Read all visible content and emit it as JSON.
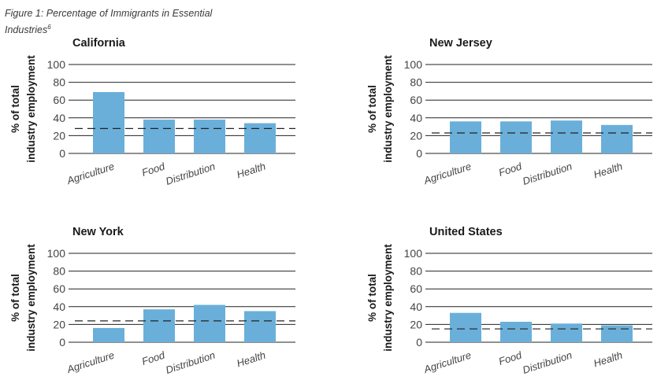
{
  "figure": {
    "caption": "Figure 1: Percentage of Immigrants in Essential Industries",
    "footnote": "6"
  },
  "colors": {
    "bar": "#6aafd9",
    "axis": "#333333",
    "grid": "#222222",
    "text": "#444444"
  },
  "chart_data": [
    {
      "type": "bar",
      "title": "California",
      "ylabel_line1": "% of total",
      "ylabel_line2": "industry employment",
      "categories": [
        "Agriculture",
        "Food",
        "Distribution",
        "Health"
      ],
      "values": [
        69,
        38,
        38,
        34
      ],
      "reference_line": 28,
      "ylim": [
        0,
        100
      ],
      "yticks": [
        0,
        20,
        40,
        60,
        80,
        100
      ],
      "grid": true
    },
    {
      "type": "bar",
      "title": "New Jersey",
      "ylabel_line1": "% of total",
      "ylabel_line2": "industry employment",
      "categories": [
        "Agriculture",
        "Food",
        "Distribution",
        "Health"
      ],
      "values": [
        36,
        36,
        37,
        32
      ],
      "reference_line": 23,
      "ylim": [
        0,
        100
      ],
      "yticks": [
        0,
        20,
        40,
        60,
        80,
        100
      ],
      "grid": true
    },
    {
      "type": "bar",
      "title": "New York",
      "ylabel_line1": "% of total",
      "ylabel_line2": "industry employment",
      "categories": [
        "Agriculture",
        "Food",
        "Distribution",
        "Health"
      ],
      "values": [
        16,
        37,
        42,
        35
      ],
      "reference_line": 24,
      "ylim": [
        0,
        100
      ],
      "yticks": [
        0,
        20,
        40,
        60,
        80,
        100
      ],
      "grid": true
    },
    {
      "type": "bar",
      "title": "United States",
      "ylabel_line1": "% of total",
      "ylabel_line2": "industry employment",
      "categories": [
        "Agriculture",
        "Food",
        "Distribution",
        "Health"
      ],
      "values": [
        33,
        23,
        21,
        19
      ],
      "reference_line": 15,
      "ylim": [
        0,
        100
      ],
      "yticks": [
        0,
        20,
        40,
        60,
        80,
        100
      ],
      "grid": true
    }
  ]
}
